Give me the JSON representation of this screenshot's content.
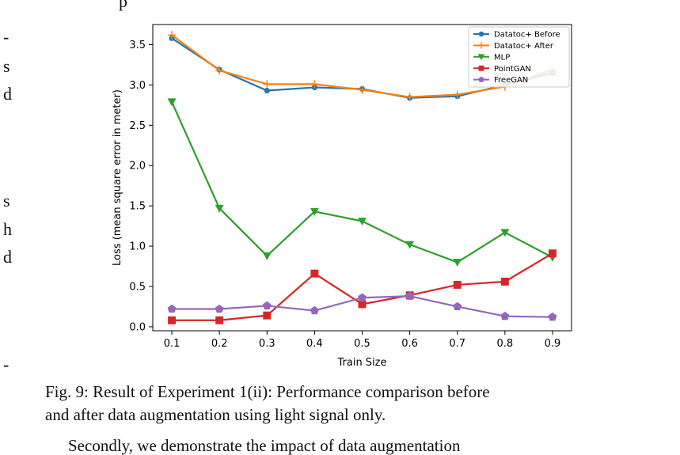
{
  "page": {
    "top_fragment": "p",
    "left_fragments": [
      "-",
      "s",
      "d",
      "s",
      "h",
      "d",
      "-"
    ],
    "caption_line1": "Fig. 9: Result of Experiment 1(ii): Performance comparison before",
    "caption_line2": "and after data augmentation using light signal only.",
    "bottom_fragment": "Secondly, we demonstrate the impact of data augmentation"
  },
  "chart_data": {
    "type": "line",
    "xlabel": "Train Size",
    "ylabel": "Loss (mean square error in meter)",
    "x": [
      0.1,
      0.2,
      0.3,
      0.4,
      0.5,
      0.6,
      0.7,
      0.8,
      0.9
    ],
    "xticks": [
      "0.1",
      "0.2",
      "0.3",
      "0.4",
      "0.5",
      "0.6",
      "0.7",
      "0.8",
      "0.9"
    ],
    "yticks": [
      "0.0",
      "0.5",
      "1.0",
      "1.5",
      "2.0",
      "2.5",
      "3.0",
      "3.5"
    ],
    "ylim": [
      -0.05,
      3.75
    ],
    "xlim": [
      0.06,
      0.94
    ],
    "grid": false,
    "legend": "top-right",
    "series": [
      {
        "name": "Datatoc+ Before",
        "color": "#1f77b4",
        "marker": "circle",
        "values": [
          3.58,
          3.19,
          2.93,
          2.97,
          2.95,
          2.84,
          2.86,
          3.0,
          3.15
        ]
      },
      {
        "name": "Datatoc+ After",
        "color": "#ff7f0e",
        "marker": "plus",
        "values": [
          3.62,
          3.18,
          3.01,
          3.01,
          2.94,
          2.85,
          2.88,
          2.98,
          3.19
        ]
      },
      {
        "name": "MLP",
        "color": "#2ca02c",
        "marker": "triangle-down",
        "values": [
          2.79,
          1.47,
          0.88,
          1.43,
          1.31,
          1.02,
          0.8,
          1.17,
          0.86
        ]
      },
      {
        "name": "PointGAN",
        "color": "#d62728",
        "marker": "square",
        "values": [
          0.08,
          0.08,
          0.14,
          0.66,
          0.28,
          0.39,
          0.52,
          0.56,
          0.91
        ]
      },
      {
        "name": "FreeGAN",
        "color": "#9467bd",
        "marker": "pentagon",
        "values": [
          0.22,
          0.22,
          0.26,
          0.2,
          0.36,
          0.38,
          0.25,
          0.13,
          0.12
        ]
      }
    ]
  }
}
